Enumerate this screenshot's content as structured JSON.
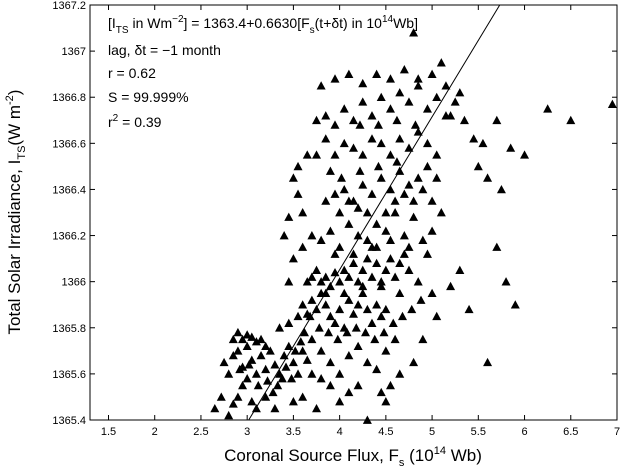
{
  "chart_data": {
    "type": "scatter",
    "xlabel": {
      "main": "Coronal Source Flux, F",
      "sub": "s",
      "open": " (10",
      "sup": "14",
      "close": " Wb)"
    },
    "ylabel": {
      "main": "Total Solar Irradiance, I",
      "sub": "TS",
      "open": "(W m",
      "sup": "-2",
      "close": ")"
    },
    "xlim": [
      1.3,
      7.0
    ],
    "ylim": [
      1365.4,
      1367.2
    ],
    "xticks": [
      1.5,
      2,
      2.5,
      3,
      3.5,
      4,
      4.5,
      5,
      5.5,
      6,
      6.5,
      7
    ],
    "xtick_labels": [
      "1.5",
      "2",
      "2.5",
      "3",
      "3.5",
      "4",
      "4.5",
      "5",
      "5.5",
      "6",
      "6.5",
      "7"
    ],
    "yticks": [
      1365.4,
      1365.6,
      1365.8,
      1366,
      1366.2,
      1366.4,
      1366.6,
      1366.8,
      1367,
      1367.2
    ],
    "ytick_labels": [
      "1365.4",
      "1365.6",
      "1365.8",
      "1366",
      "1366.2",
      "1366.4",
      "1366.6",
      "1366.8",
      "1367",
      "1367.2"
    ],
    "grid": false,
    "marker": "filled-triangle",
    "fit_line": {
      "intercept": 1363.4,
      "slope": 0.663
    },
    "annotations": {
      "equation": {
        "p1": "[I",
        "p1_sub": "TS",
        "p2": " in Wm",
        "p2_sup": "−2",
        "p3": "] = 1363.4+0.6630[F",
        "p3_sub": "s",
        "p4": "(t+δt) in 10",
        "p4_sup": "14",
        "p5": "Wb]"
      },
      "lag": "lag, δt = −1 month",
      "r": "r = 0.62",
      "S": "S = 99.999%",
      "r2_prefix": "r",
      "r2_sup": "2",
      "r2_value": " = 0.39"
    },
    "points": [
      [
        2.65,
        1365.45
      ],
      [
        2.72,
        1365.5
      ],
      [
        2.8,
        1365.42
      ],
      [
        2.85,
        1365.47
      ],
      [
        2.9,
        1365.5
      ],
      [
        2.95,
        1365.55
      ],
      [
        3.0,
        1365.58
      ],
      [
        3.05,
        1365.48
      ],
      [
        2.75,
        1365.65
      ],
      [
        2.8,
        1365.6
      ],
      [
        2.85,
        1365.68
      ],
      [
        2.9,
        1365.7
      ],
      [
        2.95,
        1365.63
      ],
      [
        3.0,
        1365.72
      ],
      [
        3.05,
        1365.66
      ],
      [
        3.1,
        1365.6
      ],
      [
        3.15,
        1365.68
      ],
      [
        3.2,
        1365.62
      ],
      [
        3.25,
        1365.7
      ],
      [
        3.3,
        1365.64
      ],
      [
        3.35,
        1365.6
      ],
      [
        3.4,
        1365.68
      ],
      [
        3.45,
        1365.72
      ],
      [
        3.5,
        1365.65
      ],
      [
        3.55,
        1365.6
      ],
      [
        3.6,
        1365.7
      ],
      [
        3.65,
        1365.66
      ],
      [
        3.7,
        1365.6
      ],
      [
        2.85,
        1365.75
      ],
      [
        2.9,
        1365.78
      ],
      [
        2.95,
        1365.75
      ],
      [
        3.0,
        1365.77
      ],
      [
        3.05,
        1365.76
      ],
      [
        3.1,
        1365.74
      ],
      [
        3.15,
        1365.75
      ],
      [
        3.2,
        1365.72
      ],
      [
        2.92,
        1365.62
      ],
      [
        3.02,
        1365.64
      ],
      [
        3.12,
        1365.55
      ],
      [
        3.22,
        1365.57
      ],
      [
        3.28,
        1365.52
      ],
      [
        3.33,
        1365.55
      ],
      [
        3.38,
        1365.58
      ],
      [
        3.42,
        1365.63
      ],
      [
        3.48,
        1365.58
      ],
      [
        3.52,
        1365.7
      ],
      [
        3.58,
        1365.74
      ],
      [
        3.62,
        1365.78
      ],
      [
        3.35,
        1365.8
      ],
      [
        3.45,
        1365.82
      ],
      [
        3.55,
        1365.85
      ],
      [
        3.6,
        1365.9
      ],
      [
        3.65,
        1365.86
      ],
      [
        3.7,
        1365.92
      ],
      [
        3.75,
        1365.88
      ],
      [
        3.8,
        1365.95
      ],
      [
        3.85,
        1365.9
      ],
      [
        3.9,
        1365.85
      ],
      [
        3.95,
        1365.82
      ],
      [
        4.0,
        1365.88
      ],
      [
        4.05,
        1365.8
      ],
      [
        4.1,
        1365.92
      ],
      [
        4.15,
        1365.86
      ],
      [
        4.2,
        1365.9
      ],
      [
        4.25,
        1365.95
      ],
      [
        4.3,
        1365.88
      ],
      [
        4.35,
        1365.82
      ],
      [
        4.4,
        1365.9
      ],
      [
        4.45,
        1365.85
      ],
      [
        4.5,
        1365.88
      ],
      [
        3.7,
        1365.75
      ],
      [
        3.8,
        1365.7
      ],
      [
        3.9,
        1365.65
      ],
      [
        4.0,
        1365.6
      ],
      [
        4.1,
        1365.68
      ],
      [
        4.2,
        1365.72
      ],
      [
        4.3,
        1365.65
      ],
      [
        4.4,
        1365.62
      ],
      [
        4.5,
        1365.7
      ],
      [
        4.6,
        1365.75
      ],
      [
        3.65,
        1366.0
      ],
      [
        3.7,
        1366.02
      ],
      [
        3.75,
        1366.05
      ],
      [
        3.8,
        1366.0
      ],
      [
        3.85,
        1366.02
      ],
      [
        3.9,
        1365.98
      ],
      [
        3.95,
        1366.04
      ],
      [
        4.0,
        1366.0
      ],
      [
        4.05,
        1366.05
      ],
      [
        4.1,
        1366.02
      ],
      [
        4.15,
        1366.08
      ],
      [
        4.2,
        1366.0
      ],
      [
        4.25,
        1366.05
      ],
      [
        4.3,
        1366.1
      ],
      [
        4.35,
        1366.02
      ],
      [
        4.4,
        1366.08
      ],
      [
        4.45,
        1366.0
      ],
      [
        4.5,
        1366.05
      ],
      [
        4.55,
        1366.1
      ],
      [
        4.6,
        1366.02
      ],
      [
        4.65,
        1366.08
      ],
      [
        4.7,
        1366.12
      ],
      [
        4.75,
        1366.05
      ],
      [
        3.5,
        1366.1
      ],
      [
        3.6,
        1366.15
      ],
      [
        3.7,
        1366.2
      ],
      [
        3.8,
        1366.18
      ],
      [
        3.9,
        1366.22
      ],
      [
        4.0,
        1366.15
      ],
      [
        4.1,
        1366.25
      ],
      [
        4.2,
        1366.2
      ],
      [
        4.3,
        1366.18
      ],
      [
        4.4,
        1366.25
      ],
      [
        4.5,
        1366.22
      ],
      [
        4.6,
        1366.3
      ],
      [
        4.7,
        1366.2
      ],
      [
        4.8,
        1366.28
      ],
      [
        4.9,
        1366.18
      ],
      [
        5.0,
        1366.22
      ],
      [
        3.85,
        1366.35
      ],
      [
        3.95,
        1366.38
      ],
      [
        4.05,
        1366.4
      ],
      [
        4.15,
        1366.35
      ],
      [
        4.25,
        1366.42
      ],
      [
        4.35,
        1366.38
      ],
      [
        4.45,
        1366.45
      ],
      [
        4.55,
        1366.4
      ],
      [
        4.65,
        1366.48
      ],
      [
        4.75,
        1366.42
      ],
      [
        4.85,
        1366.45
      ],
      [
        4.95,
        1366.5
      ],
      [
        5.05,
        1366.45
      ],
      [
        3.95,
        1366.55
      ],
      [
        4.05,
        1366.6
      ],
      [
        4.15,
        1366.58
      ],
      [
        4.25,
        1366.55
      ],
      [
        4.35,
        1366.62
      ],
      [
        4.45,
        1366.6
      ],
      [
        4.55,
        1366.55
      ],
      [
        4.65,
        1366.62
      ],
      [
        4.75,
        1366.58
      ],
      [
        4.85,
        1366.65
      ],
      [
        4.95,
        1366.6
      ],
      [
        5.05,
        1366.55
      ],
      [
        3.75,
        1366.7
      ],
      [
        3.85,
        1366.72
      ],
      [
        3.95,
        1366.68
      ],
      [
        4.05,
        1366.75
      ],
      [
        4.15,
        1366.7
      ],
      [
        4.25,
        1366.78
      ],
      [
        4.35,
        1366.72
      ],
      [
        4.45,
        1366.8
      ],
      [
        4.55,
        1366.75
      ],
      [
        4.65,
        1366.82
      ],
      [
        4.75,
        1366.78
      ],
      [
        4.85,
        1366.85
      ],
      [
        4.95,
        1366.75
      ],
      [
        5.05,
        1366.8
      ],
      [
        5.15,
        1366.72
      ],
      [
        5.25,
        1366.78
      ],
      [
        3.8,
        1366.85
      ],
      [
        3.95,
        1366.88
      ],
      [
        4.1,
        1366.9
      ],
      [
        4.25,
        1366.86
      ],
      [
        4.4,
        1366.9
      ],
      [
        4.55,
        1366.88
      ],
      [
        4.7,
        1366.92
      ],
      [
        4.85,
        1366.88
      ],
      [
        5.0,
        1366.9
      ],
      [
        5.15,
        1366.85
      ],
      [
        5.3,
        1366.82
      ],
      [
        3.55,
        1366.5
      ],
      [
        3.6,
        1366.3
      ],
      [
        3.45,
        1366.0
      ],
      [
        3.4,
        1366.2
      ],
      [
        3.5,
        1366.45
      ],
      [
        4.8,
        1367.08
      ],
      [
        5.1,
        1366.95
      ],
      [
        5.2,
        1366.72
      ],
      [
        5.35,
        1366.7
      ],
      [
        5.45,
        1366.62
      ],
      [
        5.5,
        1366.5
      ],
      [
        5.55,
        1366.6
      ],
      [
        5.6,
        1366.45
      ],
      [
        5.7,
        1366.7
      ],
      [
        5.75,
        1366.4
      ],
      [
        5.85,
        1366.58
      ],
      [
        6.0,
        1366.55
      ],
      [
        6.25,
        1366.75
      ],
      [
        6.5,
        1366.7
      ],
      [
        6.95,
        1366.77
      ],
      [
        5.7,
        1366.15
      ],
      [
        5.8,
        1366.0
      ],
      [
        5.9,
        1365.9
      ],
      [
        5.6,
        1365.65
      ],
      [
        5.4,
        1365.88
      ],
      [
        5.05,
        1365.85
      ],
      [
        5.2,
        1365.98
      ],
      [
        5.3,
        1366.05
      ],
      [
        5.0,
        1365.95
      ],
      [
        4.9,
        1365.75
      ],
      [
        4.8,
        1365.65
      ],
      [
        4.65,
        1365.6
      ],
      [
        4.55,
        1365.55
      ],
      [
        4.5,
        1365.48
      ],
      [
        4.3,
        1365.4
      ],
      [
        4.45,
        1365.52
      ],
      [
        4.2,
        1365.55
      ],
      [
        4.1,
        1365.52
      ],
      [
        4.0,
        1365.48
      ],
      [
        3.9,
        1365.55
      ],
      [
        3.8,
        1365.58
      ],
      [
        3.75,
        1365.45
      ],
      [
        3.6,
        1365.5
      ],
      [
        3.5,
        1365.48
      ],
      [
        3.3,
        1365.45
      ],
      [
        3.2,
        1365.5
      ],
      [
        3.1,
        1365.45
      ],
      [
        3.45,
        1366.28
      ],
      [
        3.55,
        1366.38
      ],
      [
        3.65,
        1366.55
      ],
      [
        3.75,
        1366.55
      ],
      [
        3.85,
        1366.62
      ],
      [
        3.9,
        1366.48
      ],
      [
        4.0,
        1366.3
      ],
      [
        4.1,
        1366.35
      ],
      [
        4.2,
        1366.32
      ],
      [
        4.3,
        1366.3
      ],
      [
        4.4,
        1366.15
      ],
      [
        4.5,
        1366.3
      ],
      [
        4.6,
        1366.35
      ],
      [
        4.7,
        1366.38
      ],
      [
        4.8,
        1366.35
      ],
      [
        4.9,
        1366.4
      ],
      [
        5.0,
        1366.35
      ],
      [
        5.1,
        1366.3
      ],
      [
        3.85,
        1365.95
      ],
      [
        4.05,
        1365.95
      ],
      [
        4.25,
        1365.98
      ],
      [
        4.45,
        1365.98
      ],
      [
        4.65,
        1365.95
      ],
      [
        4.85,
        1366.0
      ],
      [
        3.68,
        1365.85
      ],
      [
        3.78,
        1365.8
      ],
      [
        3.88,
        1365.78
      ],
      [
        3.98,
        1365.75
      ],
      [
        4.08,
        1365.78
      ],
      [
        4.18,
        1365.8
      ],
      [
        4.28,
        1365.78
      ],
      [
        4.38,
        1365.75
      ],
      [
        4.48,
        1365.78
      ],
      [
        4.58,
        1365.82
      ],
      [
        4.68,
        1365.85
      ],
      [
        4.78,
        1365.88
      ],
      [
        4.88,
        1365.92
      ],
      [
        3.95,
        1366.12
      ],
      [
        4.15,
        1366.12
      ],
      [
        4.35,
        1366.15
      ],
      [
        4.55,
        1366.18
      ],
      [
        4.75,
        1366.15
      ],
      [
        4.95,
        1366.12
      ],
      [
        4.22,
        1366.68
      ],
      [
        4.42,
        1366.68
      ],
      [
        4.62,
        1366.7
      ],
      [
        4.82,
        1366.68
      ],
      [
        4.02,
        1366.45
      ],
      [
        4.22,
        1366.48
      ],
      [
        4.42,
        1366.5
      ],
      [
        4.62,
        1366.52
      ]
    ]
  }
}
